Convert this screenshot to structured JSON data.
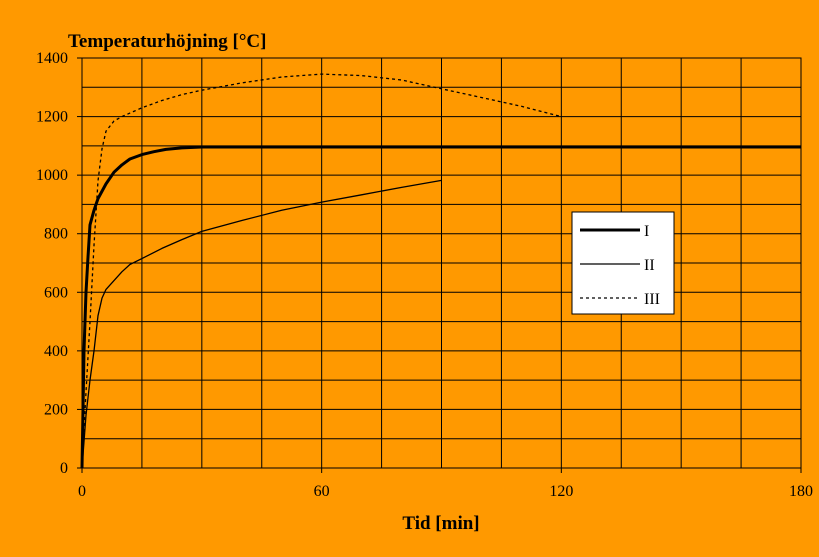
{
  "colors": {
    "background": "#FF9900",
    "plot_area": "#FF9900",
    "gridlines": "#000000",
    "series": "#000000",
    "legend_background": "#FFFFFF"
  },
  "chart_data": {
    "type": "line",
    "ylabel": "Temperaturhöjning [°C]",
    "xlabel": "Tid [min]",
    "xlim": [
      0,
      180
    ],
    "ylim": [
      0,
      1400
    ],
    "x_ticks": [
      0,
      60,
      120,
      180
    ],
    "x_ticks_labels": [
      "0",
      "60",
      "120",
      "180"
    ],
    "y_ticks": [
      0,
      200,
      400,
      600,
      800,
      1000,
      1200,
      1400
    ],
    "y_ticks_labels": [
      "0",
      "200",
      "400",
      "600",
      "800",
      "1000",
      "1200",
      "1400"
    ],
    "x_grid_step": 15,
    "y_grid_step": 100,
    "grid": true,
    "legend_position": "right",
    "series": [
      {
        "name": "I",
        "style": "thick-solid",
        "points": [
          [
            0,
            0
          ],
          [
            0.5,
            400
          ],
          [
            1,
            600
          ],
          [
            1.5,
            720
          ],
          [
            2,
            830
          ],
          [
            3,
            880
          ],
          [
            4,
            920
          ],
          [
            6,
            970
          ],
          [
            8,
            1010
          ],
          [
            10,
            1035
          ],
          [
            12,
            1055
          ],
          [
            15,
            1070
          ],
          [
            18,
            1080
          ],
          [
            21,
            1088
          ],
          [
            25,
            1093
          ],
          [
            30,
            1096
          ],
          [
            60,
            1096
          ],
          [
            120,
            1096
          ],
          [
            180,
            1096
          ]
        ]
      },
      {
        "name": "II",
        "style": "thin-solid",
        "points": [
          [
            0,
            0
          ],
          [
            1,
            180
          ],
          [
            2,
            300
          ],
          [
            3,
            400
          ],
          [
            4,
            520
          ],
          [
            5,
            580
          ],
          [
            6,
            610
          ],
          [
            8,
            640
          ],
          [
            10,
            670
          ],
          [
            12,
            695
          ],
          [
            15,
            715
          ],
          [
            20,
            750
          ],
          [
            25,
            780
          ],
          [
            30,
            808
          ],
          [
            40,
            845
          ],
          [
            50,
            880
          ],
          [
            60,
            908
          ],
          [
            70,
            933
          ],
          [
            80,
            958
          ],
          [
            90,
            982
          ]
        ]
      },
      {
        "name": "III",
        "style": "dotted",
        "points": [
          [
            0,
            0
          ],
          [
            1,
            260
          ],
          [
            2,
            500
          ],
          [
            3,
            760
          ],
          [
            4,
            980
          ],
          [
            5,
            1090
          ],
          [
            6,
            1150
          ],
          [
            8,
            1185
          ],
          [
            10,
            1200
          ],
          [
            15,
            1230
          ],
          [
            20,
            1255
          ],
          [
            25,
            1275
          ],
          [
            30,
            1290
          ],
          [
            40,
            1315
          ],
          [
            50,
            1335
          ],
          [
            60,
            1345
          ],
          [
            70,
            1340
          ],
          [
            80,
            1325
          ],
          [
            90,
            1295
          ],
          [
            100,
            1265
          ],
          [
            110,
            1235
          ],
          [
            120,
            1200
          ]
        ]
      }
    ]
  }
}
